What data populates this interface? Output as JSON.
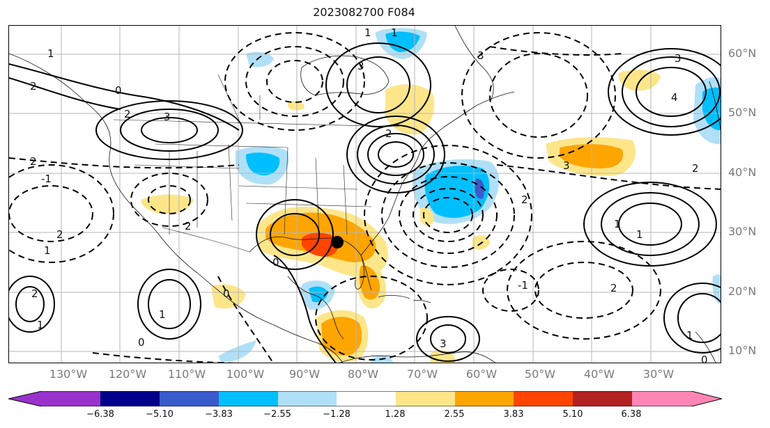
{
  "title": "2023082700 F084",
  "map": {
    "lat_labels": [
      "60°N",
      "50°N",
      "40°N",
      "30°N",
      "20°N",
      "10°N"
    ],
    "lon_labels": [
      "130°W",
      "120°W",
      "110°W",
      "100°W",
      "90°W",
      "80°W",
      "70°W",
      "60°W",
      "50°W",
      "40°W",
      "30°W"
    ],
    "contour_labels": [
      "1",
      "2",
      "0",
      "2",
      "3",
      "-1",
      "2",
      "1",
      "1",
      "3",
      "3",
      "2",
      "3",
      "4",
      "2",
      "1",
      "2",
      "3",
      "2",
      "1",
      "2",
      "0",
      "1",
      "2",
      "1",
      "3",
      "2",
      "1",
      "0",
      "-1",
      "1",
      "0",
      "0"
    ],
    "storm_marker": "black-dot",
    "colors": {
      "neg_purple": "#9932CC",
      "neg_darkblue": "#00008B",
      "neg_blue": "#3A5BCC",
      "neg_cyan": "#00BFFF",
      "neg_lightblue": "#B0E0F8",
      "neutral": "#FFFFFF",
      "pos_yellow": "#FDE68A",
      "pos_orange": "#FFA500",
      "pos_redorange": "#FF4500",
      "pos_darkred": "#B22222",
      "pos_pink": "#FF85B4"
    }
  },
  "colorbar": {
    "ticks": [
      "−6.38",
      "−5.10",
      "−3.83",
      "−2.55",
      "−1.28",
      "1.28",
      "2.55",
      "3.83",
      "5.10",
      "6.38"
    ],
    "colors": [
      "#9932CC",
      "#00008B",
      "#3A5BCC",
      "#00BFFF",
      "#B0E0F8",
      "#FFFFFF",
      "#FDE68A",
      "#FFA500",
      "#FF4500",
      "#B22222",
      "#FF85B4"
    ]
  }
}
